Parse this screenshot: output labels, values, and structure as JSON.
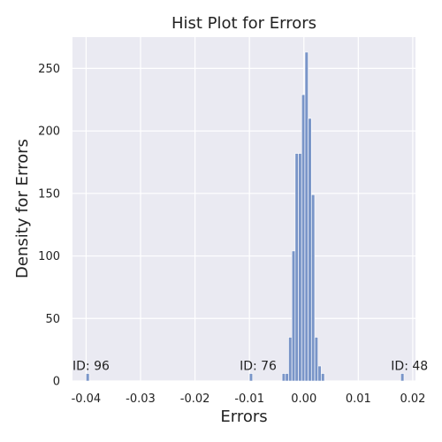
{
  "chart_data": {
    "type": "bar",
    "title": "Hist Plot for Errors",
    "xlabel": "Errors",
    "ylabel": "Density for Errors",
    "xlim": [
      -0.0425,
      0.0205
    ],
    "ylim": [
      0,
      275
    ],
    "xticks": [
      -0.04,
      -0.03,
      -0.02,
      -0.01,
      0.0,
      0.01,
      0.02
    ],
    "xtick_labels": [
      "-0.04",
      "-0.03",
      "-0.02",
      "-0.01",
      "0.00",
      "0.01",
      "0.02"
    ],
    "yticks": [
      0,
      50,
      100,
      150,
      200,
      250
    ],
    "ytick_labels": [
      "0",
      "50",
      "100",
      "150",
      "200",
      "250"
    ],
    "grid": true,
    "background_color": "#eaeaf2",
    "bar_color": "#7995c8",
    "bar_edge_color": "#ffffff",
    "bin_width": 0.000585,
    "bins": [
      {
        "x": -0.04,
        "value": 6
      },
      {
        "x": -0.01,
        "value": 6
      },
      {
        "x": -0.004,
        "value": 6
      },
      {
        "x": -0.0034,
        "value": 6
      },
      {
        "x": -0.0028,
        "value": 35
      },
      {
        "x": -0.0022,
        "value": 104
      },
      {
        "x": -0.0016,
        "value": 182
      },
      {
        "x": -0.001,
        "value": 182
      },
      {
        "x": -0.0004,
        "value": 229
      },
      {
        "x": 0.0002,
        "value": 263
      },
      {
        "x": 0.0008,
        "value": 210
      },
      {
        "x": 0.0014,
        "value": 149
      },
      {
        "x": 0.002,
        "value": 35
      },
      {
        "x": 0.0026,
        "value": 12
      },
      {
        "x": 0.0032,
        "value": 6
      },
      {
        "x": 0.0178,
        "value": 6
      }
    ],
    "annotations": [
      {
        "text": "ID: 96",
        "x": -0.0425,
        "y": 9
      },
      {
        "text": "ID: 76",
        "x": -0.0118,
        "y": 9
      },
      {
        "text": "ID: 48",
        "x": 0.016,
        "y": 9
      }
    ]
  }
}
